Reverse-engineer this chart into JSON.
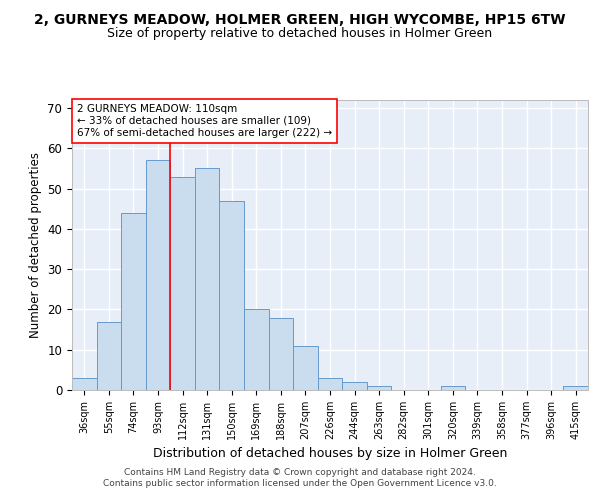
{
  "title": "2, GURNEYS MEADOW, HOLMER GREEN, HIGH WYCOMBE, HP15 6TW",
  "subtitle": "Size of property relative to detached houses in Holmer Green",
  "xlabel": "Distribution of detached houses by size in Holmer Green",
  "ylabel": "Number of detached properties",
  "bar_color": "#c9ddef",
  "bar_edge_color": "#6699cc",
  "background_color": "#ffffff",
  "plot_bg_color": "#e8eef8",
  "grid_color": "#ffffff",
  "categories": [
    "36sqm",
    "55sqm",
    "74sqm",
    "93sqm",
    "112sqm",
    "131sqm",
    "150sqm",
    "169sqm",
    "188sqm",
    "207sqm",
    "226sqm",
    "244sqm",
    "263sqm",
    "282sqm",
    "301sqm",
    "320sqm",
    "339sqm",
    "358sqm",
    "377sqm",
    "396sqm",
    "415sqm"
  ],
  "values": [
    3,
    17,
    44,
    57,
    53,
    55,
    47,
    20,
    18,
    11,
    3,
    2,
    1,
    0,
    0,
    1,
    0,
    0,
    0,
    0,
    1
  ],
  "ylim": [
    0,
    72
  ],
  "yticks": [
    0,
    10,
    20,
    30,
    40,
    50,
    60,
    70
  ],
  "property_label": "2 GURNEYS MEADOW: 110sqm",
  "pct_smaller": "33% of detached houses are smaller (109)",
  "pct_larger": "67% of semi-detached houses are larger (222)",
  "vline_bin_index": 4,
  "footer_line1": "Contains HM Land Registry data © Crown copyright and database right 2024.",
  "footer_line2": "Contains public sector information licensed under the Open Government Licence v3.0."
}
